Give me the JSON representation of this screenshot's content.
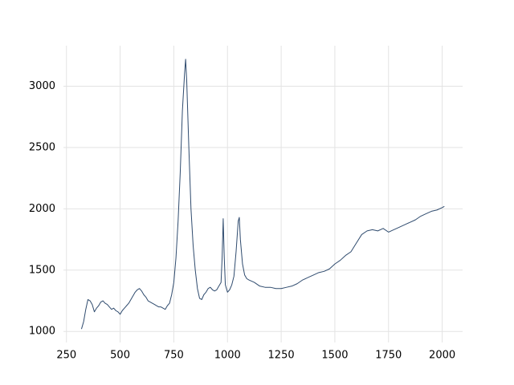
{
  "chart_data": {
    "type": "line",
    "x": [
      320,
      330,
      340,
      350,
      360,
      370,
      380,
      390,
      400,
      410,
      420,
      430,
      440,
      450,
      460,
      470,
      480,
      490,
      500,
      510,
      520,
      530,
      540,
      550,
      560,
      570,
      580,
      590,
      600,
      610,
      620,
      630,
      640,
      650,
      660,
      670,
      680,
      690,
      700,
      710,
      720,
      730,
      740,
      750,
      760,
      770,
      780,
      790,
      800,
      805,
      810,
      820,
      830,
      840,
      850,
      860,
      870,
      880,
      890,
      900,
      910,
      920,
      930,
      940,
      950,
      960,
      970,
      975,
      980,
      985,
      990,
      1000,
      1010,
      1020,
      1030,
      1040,
      1050,
      1055,
      1060,
      1070,
      1080,
      1090,
      1100,
      1125,
      1150,
      1175,
      1200,
      1225,
      1250,
      1275,
      1300,
      1325,
      1350,
      1375,
      1400,
      1425,
      1450,
      1475,
      1500,
      1525,
      1550,
      1575,
      1600,
      1625,
      1650,
      1675,
      1700,
      1725,
      1750,
      1775,
      1800,
      1825,
      1850,
      1875,
      1900,
      1925,
      1950,
      1975,
      2000,
      2010
    ],
    "series": [
      {
        "color": "#2f4b6e",
        "values": [
          1020,
          1080,
          1180,
          1260,
          1250,
          1220,
          1160,
          1190,
          1210,
          1240,
          1250,
          1230,
          1220,
          1200,
          1180,
          1190,
          1170,
          1160,
          1140,
          1170,
          1190,
          1210,
          1230,
          1260,
          1290,
          1320,
          1340,
          1350,
          1330,
          1300,
          1280,
          1250,
          1240,
          1230,
          1220,
          1210,
          1200,
          1200,
          1190,
          1180,
          1210,
          1230,
          1300,
          1400,
          1600,
          1900,
          2300,
          2800,
          3100,
          3220,
          3050,
          2500,
          2000,
          1700,
          1500,
          1350,
          1270,
          1260,
          1300,
          1320,
          1350,
          1360,
          1340,
          1330,
          1340,
          1370,
          1400,
          1600,
          1920,
          1600,
          1380,
          1320,
          1340,
          1380,
          1450,
          1650,
          1900,
          1930,
          1750,
          1550,
          1460,
          1430,
          1420,
          1400,
          1370,
          1360,
          1360,
          1350,
          1350,
          1360,
          1370,
          1390,
          1420,
          1440,
          1460,
          1480,
          1490,
          1510,
          1550,
          1580,
          1620,
          1650,
          1720,
          1790,
          1820,
          1830,
          1820,
          1840,
          1810,
          1830,
          1850,
          1870,
          1890,
          1910,
          1940,
          1960,
          1980,
          1990,
          2010,
          2020
        ]
      }
    ],
    "xlim": [
      236,
      2095
    ],
    "ylim": [
      910,
      3330
    ],
    "xticks": [
      250,
      500,
      750,
      1000,
      1250,
      1500,
      1750,
      2000
    ],
    "yticks": [
      1000,
      1500,
      2000,
      2500,
      3000
    ],
    "grid": true
  }
}
